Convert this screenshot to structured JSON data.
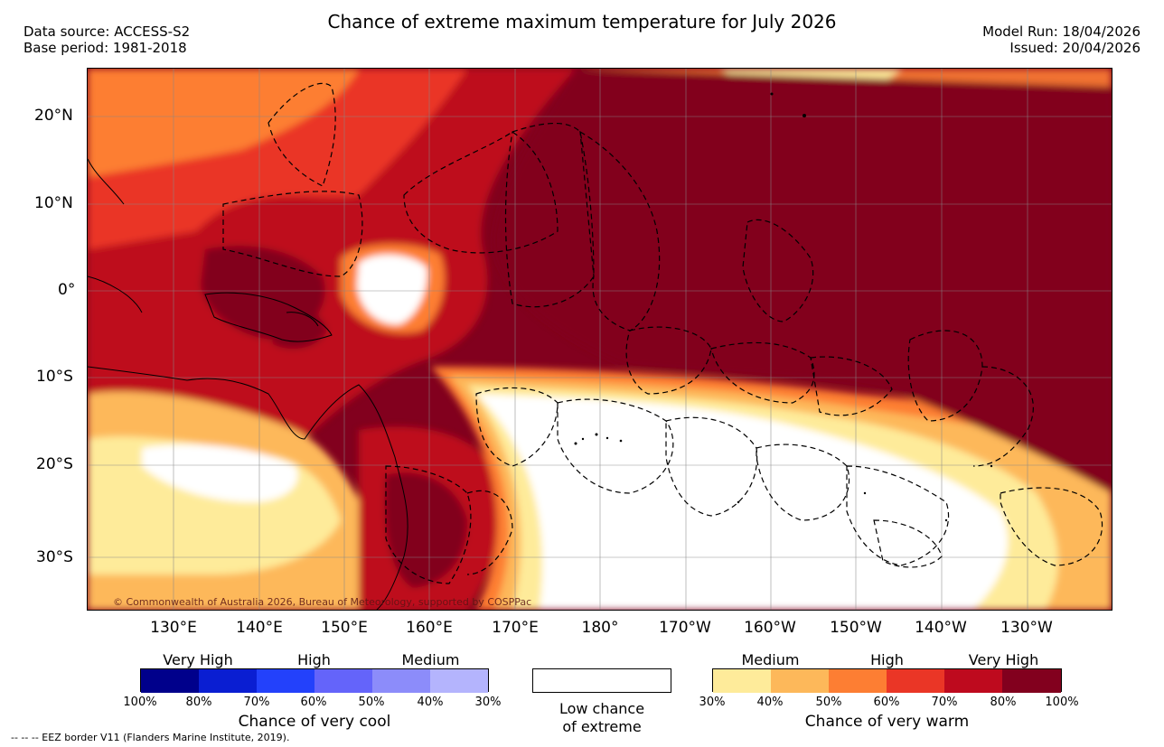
{
  "header": {
    "title": "Chance of extreme maximum temperature for July 2026",
    "data_source": "Data source: ACCESS-S2",
    "base_period": "Base period: 1981-2018",
    "model_run": "Model Run: 18/04/2026",
    "issued": "Issued: 20/04/2026"
  },
  "map": {
    "lat_labels": [
      "20°N",
      "10°N",
      "0°",
      "10°S",
      "20°S",
      "30°S"
    ],
    "lon_labels": [
      "130°E",
      "140°E",
      "150°E",
      "160°E",
      "170°E",
      "180°",
      "170°W",
      "160°W",
      "150°W",
      "140°W",
      "130°W"
    ],
    "copyright": "© Commonwealth of Australia 2026, Bureau of Meteorology, supported by COSPPac"
  },
  "legend": {
    "cool": {
      "categories": [
        "Very High",
        "High",
        "Medium"
      ],
      "percentages": [
        "100%",
        "80%",
        "70%",
        "60%",
        "50%",
        "40%",
        "30%"
      ],
      "colors": [
        "#00008b",
        "#0a1ed2",
        "#2341fb",
        "#6464fa",
        "#8c8cfa",
        "#b4b4fd"
      ],
      "title": "Chance of very cool"
    },
    "low": {
      "line1": "Low chance",
      "line2": "of extreme"
    },
    "warm": {
      "categories": [
        "Medium",
        "High",
        "Very High"
      ],
      "percentages": [
        "30%",
        "40%",
        "50%",
        "60%",
        "70%",
        "80%",
        "100%"
      ],
      "colors": [
        "#feeb9a",
        "#fdb85a",
        "#fd7e33",
        "#ea3626",
        "#be0a1e",
        "#82001e"
      ],
      "title": "Chance of very warm"
    }
  },
  "footer": {
    "eez_note": "-- -- -- EEZ border V11 (Flanders Marine Institute, 2019)."
  }
}
